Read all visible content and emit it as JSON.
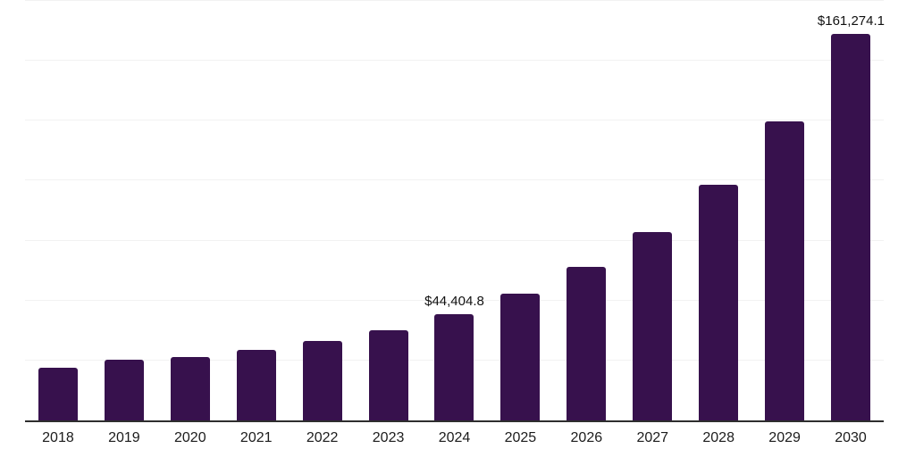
{
  "chart_data": {
    "type": "bar",
    "title": "",
    "xlabel": "",
    "ylabel": "",
    "categories": [
      "2018",
      "2019",
      "2020",
      "2021",
      "2022",
      "2023",
      "2024",
      "2025",
      "2026",
      "2027",
      "2028",
      "2029",
      "2030"
    ],
    "values": [
      22100,
      25400,
      26400,
      29500,
      33100,
      37700,
      44404.8,
      53000,
      64100,
      78500,
      98300,
      124800,
      161274.1
    ],
    "data_labels": [
      "",
      "",
      "",
      "",
      "",
      "",
      "$44,404.8",
      "",
      "",
      "",
      "",
      "",
      "$161,274.1"
    ],
    "ylim": [
      0,
      175000
    ],
    "gridline_step": 25000,
    "grid": true,
    "legend": "none",
    "bar_color": "#37114d",
    "gridline_color": "#f2f2f2",
    "axis_line_color": "#2e2e2e",
    "label_color": "#111111",
    "tick_label_color": "#1c1c1c"
  }
}
